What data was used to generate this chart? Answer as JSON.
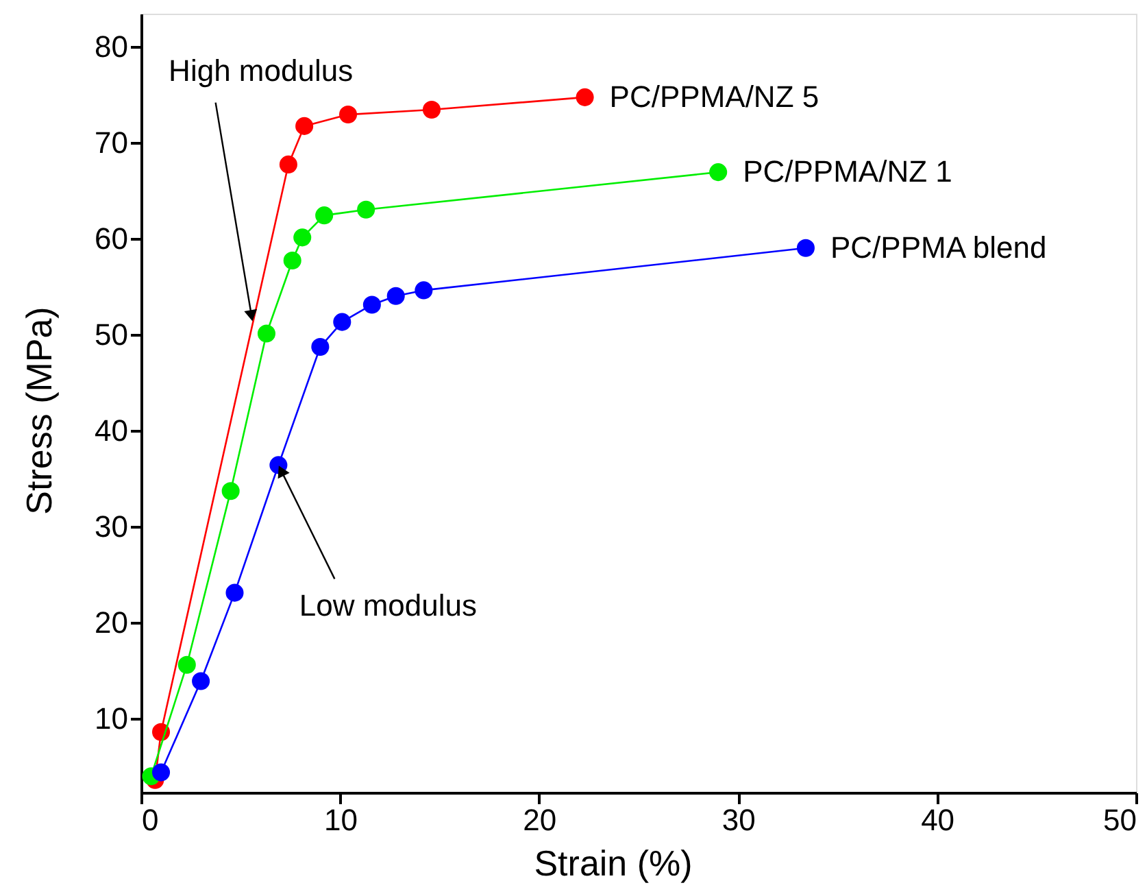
{
  "chart_data": {
    "type": "line",
    "xlabel": "Strain (%)",
    "ylabel": "Stress (MPa)",
    "xlim": [
      0,
      50
    ],
    "xticks": [
      0,
      10,
      20,
      30,
      40,
      50
    ],
    "ylim": [
      2.3,
      83.4
    ],
    "yticks": [
      10,
      20,
      30,
      40,
      50,
      60,
      70,
      80
    ],
    "grid": false,
    "legend": false,
    "marker": "circle",
    "line_style": "solid",
    "series": [
      {
        "name": "PC/PPMA/NZ 5",
        "color": "#ff0000",
        "x": [
          0.7,
          1.0,
          7.4,
          8.2,
          10.4,
          14.6,
          22.3
        ],
        "values": [
          3.6,
          8.6,
          67.7,
          71.7,
          72.9,
          73.4,
          74.7
        ]
      },
      {
        "name": "PC/PPMA/NZ 1",
        "color": "#00ee00",
        "x": [
          0.5,
          2.3,
          4.5,
          6.3,
          7.6,
          8.1,
          9.2,
          11.3,
          29.0
        ],
        "values": [
          4.0,
          15.6,
          33.7,
          50.1,
          57.7,
          60.1,
          62.4,
          63.0,
          66.9
        ]
      },
      {
        "name": "PC/PPMA blend",
        "color": "#0000ff",
        "x": [
          1.0,
          3.0,
          4.7,
          6.9,
          9.0,
          10.1,
          11.6,
          12.8,
          14.2,
          33.4
        ],
        "values": [
          4.4,
          13.9,
          23.1,
          36.4,
          48.7,
          51.3,
          53.1,
          54.0,
          54.6,
          59.0
        ]
      }
    ],
    "annotations": [
      {
        "text": "High modulus",
        "x": 5.6,
        "y": 51.3
      },
      {
        "text": "Low modulus",
        "x": 6.9,
        "y": 36.4
      }
    ]
  }
}
